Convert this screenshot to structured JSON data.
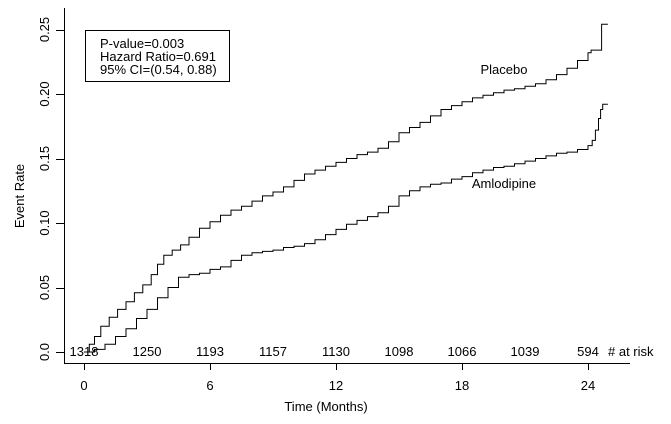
{
  "chart_data": {
    "type": "line",
    "subtype": "kaplan-meier-step",
    "title": "",
    "xlabel": "Time (Months)",
    "ylabel": "Event Rate",
    "xlim": [
      0,
      26
    ],
    "ylim": [
      0,
      0.25
    ],
    "grid": false,
    "line_color": "#000000",
    "background_color": "#ffffff",
    "x_ticks": [
      0,
      6,
      12,
      18,
      24
    ],
    "y_ticks": [
      0,
      0.05,
      0.1,
      0.15,
      0.2,
      0.25
    ],
    "y_tick_labels": [
      "0.0",
      "0.05",
      "0.10",
      "0.15",
      "0.20",
      "0.25"
    ],
    "annotation": {
      "lines": [
        "P-value=0.003",
        "Hazard Ratio=0.691",
        "95% CI=(0.54, 0.88)"
      ]
    },
    "at_risk": {
      "label": "# at risk",
      "times": [
        0,
        3,
        6,
        9,
        12,
        15,
        18,
        21,
        24
      ],
      "counts": [
        1318,
        1250,
        1193,
        1157,
        1130,
        1098,
        1066,
        1039,
        594
      ]
    },
    "series": [
      {
        "name": "Placebo",
        "points": [
          [
            0,
            0
          ],
          [
            0.25,
            0.006
          ],
          [
            0.5,
            0.012
          ],
          [
            0.8,
            0.02
          ],
          [
            1.2,
            0.027
          ],
          [
            1.6,
            0.033
          ],
          [
            2.0,
            0.039
          ],
          [
            2.4,
            0.046
          ],
          [
            2.8,
            0.052
          ],
          [
            3.2,
            0.06
          ],
          [
            3.5,
            0.068
          ],
          [
            3.8,
            0.075
          ],
          [
            4.2,
            0.079
          ],
          [
            4.6,
            0.083
          ],
          [
            5.0,
            0.089
          ],
          [
            5.5,
            0.096
          ],
          [
            6.0,
            0.101
          ],
          [
            6.5,
            0.106
          ],
          [
            7.0,
            0.11
          ],
          [
            7.5,
            0.113
          ],
          [
            8.0,
            0.117
          ],
          [
            8.5,
            0.121
          ],
          [
            9.0,
            0.124
          ],
          [
            9.5,
            0.128
          ],
          [
            10.0,
            0.133
          ],
          [
            10.5,
            0.138
          ],
          [
            11.0,
            0.141
          ],
          [
            11.5,
            0.144
          ],
          [
            12.0,
            0.147
          ],
          [
            12.5,
            0.15
          ],
          [
            13.0,
            0.153
          ],
          [
            13.5,
            0.155
          ],
          [
            14.0,
            0.158
          ],
          [
            14.5,
            0.163
          ],
          [
            15.0,
            0.17
          ],
          [
            15.5,
            0.174
          ],
          [
            16.0,
            0.178
          ],
          [
            16.5,
            0.183
          ],
          [
            17.0,
            0.188
          ],
          [
            17.5,
            0.191
          ],
          [
            18.0,
            0.194
          ],
          [
            18.5,
            0.197
          ],
          [
            19.0,
            0.199
          ],
          [
            19.5,
            0.201
          ],
          [
            20.0,
            0.203
          ],
          [
            20.5,
            0.204
          ],
          [
            21.0,
            0.206
          ],
          [
            21.5,
            0.208
          ],
          [
            22.0,
            0.211
          ],
          [
            22.5,
            0.215
          ],
          [
            23.0,
            0.22
          ],
          [
            23.5,
            0.226
          ],
          [
            24.0,
            0.232
          ],
          [
            24.15,
            0.234
          ],
          [
            24.65,
            0.254
          ],
          [
            24.95,
            0.254
          ]
        ]
      },
      {
        "name": "Amlodipine",
        "points": [
          [
            0,
            0
          ],
          [
            0.5,
            0.002
          ],
          [
            1.0,
            0.006
          ],
          [
            1.5,
            0.012
          ],
          [
            2.0,
            0.018
          ],
          [
            2.5,
            0.026
          ],
          [
            3.0,
            0.033
          ],
          [
            3.5,
            0.042
          ],
          [
            4.0,
            0.05
          ],
          [
            4.5,
            0.058
          ],
          [
            5.0,
            0.06
          ],
          [
            5.5,
            0.061
          ],
          [
            6.0,
            0.064
          ],
          [
            6.5,
            0.066
          ],
          [
            7.0,
            0.071
          ],
          [
            7.5,
            0.075
          ],
          [
            8.0,
            0.077
          ],
          [
            8.5,
            0.078
          ],
          [
            9.0,
            0.079
          ],
          [
            9.5,
            0.081
          ],
          [
            10.0,
            0.082
          ],
          [
            10.5,
            0.084
          ],
          [
            11.0,
            0.087
          ],
          [
            11.5,
            0.091
          ],
          [
            12.0,
            0.095
          ],
          [
            12.5,
            0.099
          ],
          [
            13.0,
            0.102
          ],
          [
            13.5,
            0.105
          ],
          [
            14.0,
            0.108
          ],
          [
            14.5,
            0.113
          ],
          [
            15.0,
            0.121
          ],
          [
            15.5,
            0.125
          ],
          [
            16.0,
            0.128
          ],
          [
            16.5,
            0.13
          ],
          [
            17.0,
            0.131
          ],
          [
            17.5,
            0.134
          ],
          [
            18.0,
            0.136
          ],
          [
            18.5,
            0.139
          ],
          [
            19.0,
            0.141
          ],
          [
            19.5,
            0.143
          ],
          [
            20.0,
            0.144
          ],
          [
            20.5,
            0.146
          ],
          [
            21.0,
            0.148
          ],
          [
            21.5,
            0.15
          ],
          [
            22.0,
            0.152
          ],
          [
            22.5,
            0.154
          ],
          [
            23.0,
            0.155
          ],
          [
            23.5,
            0.157
          ],
          [
            24.0,
            0.16
          ],
          [
            24.2,
            0.164
          ],
          [
            24.35,
            0.172
          ],
          [
            24.5,
            0.181
          ],
          [
            24.6,
            0.188
          ],
          [
            24.7,
            0.192
          ],
          [
            24.95,
            0.192
          ]
        ]
      }
    ]
  }
}
